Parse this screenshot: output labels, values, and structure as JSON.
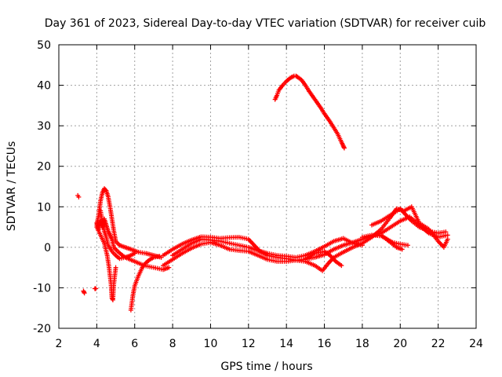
{
  "chart_data": {
    "type": "scatter",
    "title": "Day 361 of 2023, Sidereal Day-to-day VTEC variation (SDTVAR) for receiver cuib",
    "xlabel": "GPS time / hours",
    "ylabel": "SDTVAR / TECUs",
    "xlim": [
      2,
      24
    ],
    "ylim": [
      -20,
      50
    ],
    "xticks": [
      2,
      4,
      6,
      8,
      10,
      12,
      14,
      16,
      18,
      20,
      22,
      24
    ],
    "yticks": [
      -20,
      -10,
      0,
      10,
      20,
      30,
      40,
      50
    ],
    "xtick_labels": [
      "2",
      "4",
      "6",
      "8",
      "10",
      "12",
      "14",
      "16",
      "18",
      "20",
      "22",
      "24"
    ],
    "ytick_labels": [
      "-20",
      "-10",
      "0",
      "10",
      "20",
      "30",
      "40",
      "50"
    ],
    "grid": true,
    "marker": "+",
    "color": "#ff0000",
    "series": [
      {
        "name": "isolated-1",
        "points": [
          [
            3.0,
            12.8
          ],
          [
            3.05,
            12.4
          ]
        ]
      },
      {
        "name": "isolated-2",
        "points": [
          [
            3.3,
            -10.8
          ],
          [
            3.35,
            -11.3
          ]
        ]
      },
      {
        "name": "isolated-3",
        "points": [
          [
            3.9,
            -10.2
          ],
          [
            3.95,
            -10.2
          ]
        ]
      },
      {
        "name": "dawn-arc",
        "points": [
          [
            4.0,
            5.5
          ],
          [
            4.1,
            8.0
          ],
          [
            4.2,
            11.5
          ],
          [
            4.3,
            13.5
          ],
          [
            4.4,
            14.5
          ],
          [
            4.5,
            14.0
          ],
          [
            4.6,
            12.5
          ],
          [
            4.7,
            10.0
          ],
          [
            4.8,
            7.0
          ],
          [
            4.9,
            4.0
          ],
          [
            5.0,
            1.5
          ],
          [
            5.2,
            0.5
          ],
          [
            5.5,
            0.0
          ],
          [
            5.8,
            -0.5
          ],
          [
            6.2,
            -1.2
          ],
          [
            6.6,
            -1.5
          ],
          [
            7.0,
            -2.0
          ],
          [
            7.4,
            -2.5
          ]
        ]
      },
      {
        "name": "dawn-drop",
        "points": [
          [
            4.0,
            5.0
          ],
          [
            4.2,
            3.0
          ],
          [
            4.4,
            1.0
          ],
          [
            4.55,
            -2.0
          ],
          [
            4.65,
            -5.0
          ],
          [
            4.75,
            -9.0
          ],
          [
            4.8,
            -12.5
          ],
          [
            4.85,
            -13.0
          ],
          [
            4.9,
            -9.0
          ],
          [
            5.0,
            -5.0
          ]
        ]
      },
      {
        "name": "dawn-loop",
        "points": [
          [
            4.2,
            9.0
          ],
          [
            4.3,
            6.0
          ],
          [
            4.4,
            4.0
          ],
          [
            4.5,
            2.5
          ],
          [
            4.6,
            0.5
          ],
          [
            4.8,
            -1.0
          ],
          [
            5.0,
            -2.0
          ],
          [
            5.2,
            -2.8
          ],
          [
            5.5,
            -2.5
          ],
          [
            6.0,
            -3.5
          ],
          [
            6.5,
            -4.5
          ],
          [
            7.0,
            -5.0
          ],
          [
            7.5,
            -5.5
          ],
          [
            7.8,
            -5.0
          ]
        ]
      },
      {
        "name": "dawn-dip",
        "points": [
          [
            5.8,
            -15.5
          ],
          [
            5.9,
            -12.0
          ],
          [
            6.0,
            -9.5
          ],
          [
            6.2,
            -7.0
          ],
          [
            6.4,
            -5.0
          ],
          [
            6.6,
            -3.8
          ],
          [
            6.8,
            -3.0
          ],
          [
            7.0,
            -2.5
          ],
          [
            7.3,
            -2.2
          ]
        ]
      },
      {
        "name": "dawn-cluster",
        "points": [
          [
            4.0,
            6.0
          ],
          [
            4.1,
            4.5
          ],
          [
            4.2,
            6.5
          ],
          [
            4.3,
            5.0
          ],
          [
            4.4,
            7.0
          ],
          [
            4.5,
            5.5
          ],
          [
            4.6,
            4.0
          ],
          [
            4.7,
            3.0
          ],
          [
            4.8,
            2.0
          ],
          [
            4.9,
            0.0
          ],
          [
            5.1,
            -1.0
          ],
          [
            5.3,
            -1.8
          ],
          [
            5.5,
            -2.5
          ],
          [
            5.7,
            -2.2
          ],
          [
            6.0,
            -1.5
          ]
        ]
      },
      {
        "name": "midday-upper",
        "points": [
          [
            7.5,
            -2.0
          ],
          [
            8.0,
            -0.5
          ],
          [
            8.5,
            0.8
          ],
          [
            9.0,
            1.8
          ],
          [
            9.5,
            2.6
          ],
          [
            10.0,
            2.5
          ],
          [
            10.5,
            2.2
          ],
          [
            11.0,
            2.4
          ],
          [
            11.5,
            2.5
          ],
          [
            12.0,
            2.0
          ],
          [
            12.3,
            0.5
          ],
          [
            12.6,
            -1.0
          ],
          [
            13.0,
            -2.0
          ],
          [
            13.5,
            -2.5
          ],
          [
            14.0,
            -2.8
          ],
          [
            14.5,
            -3.2
          ],
          [
            15.0,
            -3.0
          ],
          [
            15.5,
            -2.5
          ],
          [
            16.0,
            -1.8
          ],
          [
            16.5,
            -0.5
          ],
          [
            17.0,
            0.5
          ],
          [
            17.5,
            1.2
          ],
          [
            18.0,
            2.0
          ],
          [
            18.5,
            2.8
          ],
          [
            19.0,
            3.5
          ],
          [
            19.5,
            5.0
          ],
          [
            20.0,
            6.5
          ],
          [
            20.5,
            7.5
          ],
          [
            21.0,
            5.5
          ],
          [
            21.5,
            3.5
          ],
          [
            22.0,
            2.5
          ],
          [
            22.5,
            3.0
          ]
        ]
      },
      {
        "name": "midday-lower",
        "points": [
          [
            7.5,
            -4.5
          ],
          [
            8.0,
            -3.0
          ],
          [
            8.5,
            -1.5
          ],
          [
            9.0,
            -0.2
          ],
          [
            9.5,
            0.8
          ],
          [
            10.0,
            1.2
          ],
          [
            10.5,
            0.5
          ],
          [
            11.0,
            -0.5
          ],
          [
            11.5,
            -0.8
          ],
          [
            12.0,
            -1.0
          ],
          [
            12.5,
            -2.0
          ],
          [
            13.0,
            -3.0
          ],
          [
            13.5,
            -3.5
          ],
          [
            14.0,
            -3.5
          ],
          [
            14.5,
            -3.2
          ],
          [
            15.0,
            -3.5
          ],
          [
            15.5,
            -4.5
          ],
          [
            15.9,
            -5.8
          ],
          [
            16.2,
            -4.0
          ],
          [
            16.5,
            -2.5
          ],
          [
            17.0,
            -1.2
          ],
          [
            17.5,
            0.0
          ],
          [
            18.0,
            1.0
          ],
          [
            18.5,
            2.5
          ],
          [
            19.0,
            4.5
          ],
          [
            19.5,
            7.5
          ],
          [
            19.8,
            9.5
          ],
          [
            20.2,
            9.0
          ],
          [
            20.6,
            10.0
          ],
          [
            20.8,
            8.0
          ],
          [
            21.0,
            6.0
          ],
          [
            21.5,
            4.5
          ],
          [
            22.0,
            1.5
          ],
          [
            22.3,
            0.0
          ],
          [
            22.5,
            2.0
          ]
        ]
      },
      {
        "name": "midday-band",
        "points": [
          [
            8.0,
            -2.0
          ],
          [
            8.5,
            -0.5
          ],
          [
            9.0,
            1.0
          ],
          [
            9.5,
            2.0
          ],
          [
            10.0,
            1.8
          ],
          [
            10.5,
            1.5
          ],
          [
            11.0,
            1.0
          ],
          [
            11.5,
            0.5
          ],
          [
            12.0,
            0.0
          ],
          [
            12.5,
            -0.8
          ],
          [
            13.0,
            -1.5
          ],
          [
            13.5,
            -2.0
          ],
          [
            14.0,
            -2.2
          ],
          [
            14.5,
            -2.5
          ],
          [
            15.0,
            -2.0
          ],
          [
            15.5,
            -1.0
          ],
          [
            16.0,
            0.2
          ],
          [
            16.5,
            1.5
          ],
          [
            17.0,
            2.2
          ],
          [
            17.5,
            1.0
          ],
          [
            18.0,
            0.5
          ]
        ]
      },
      {
        "name": "afternoon-branch",
        "points": [
          [
            15.0,
            -2.8
          ],
          [
            15.5,
            -1.5
          ],
          [
            16.0,
            -1.0
          ],
          [
            16.3,
            -2.0
          ],
          [
            16.6,
            -3.5
          ],
          [
            16.9,
            -4.5
          ]
        ]
      },
      {
        "name": "evening-branch",
        "points": [
          [
            18.5,
            5.5
          ],
          [
            19.0,
            6.5
          ],
          [
            19.5,
            8.0
          ],
          [
            20.0,
            9.5
          ],
          [
            20.3,
            8.0
          ],
          [
            20.6,
            6.5
          ],
          [
            21.0,
            5.0
          ],
          [
            21.5,
            4.0
          ],
          [
            22.0,
            3.5
          ],
          [
            22.4,
            3.8
          ]
        ]
      },
      {
        "name": "evening-decay",
        "points": [
          [
            19.0,
            3.0
          ],
          [
            19.4,
            1.5
          ],
          [
            19.8,
            0.0
          ],
          [
            20.1,
            -0.5
          ]
        ]
      },
      {
        "name": "evening-steps",
        "points": [
          [
            18.0,
            2.5
          ],
          [
            18.5,
            3.0
          ],
          [
            19.0,
            2.8
          ],
          [
            19.3,
            2.0
          ],
          [
            19.6,
            1.2
          ],
          [
            20.0,
            0.8
          ],
          [
            20.4,
            0.5
          ]
        ]
      },
      {
        "name": "noon-arc",
        "points": [
          [
            13.4,
            36.5
          ],
          [
            13.5,
            37.5
          ],
          [
            13.6,
            38.8
          ],
          [
            13.8,
            40.0
          ],
          [
            14.0,
            41.0
          ],
          [
            14.2,
            41.8
          ],
          [
            14.4,
            42.3
          ],
          [
            14.5,
            42.3
          ],
          [
            14.6,
            42.0
          ],
          [
            14.8,
            41.3
          ],
          [
            15.0,
            40.0
          ],
          [
            15.2,
            38.5
          ],
          [
            15.5,
            36.5
          ],
          [
            15.8,
            34.5
          ],
          [
            16.0,
            33.0
          ],
          [
            16.3,
            31.0
          ],
          [
            16.5,
            29.5
          ],
          [
            16.7,
            28.0
          ],
          [
            16.9,
            26.0
          ],
          [
            17.0,
            25.0
          ],
          [
            17.05,
            24.5
          ]
        ]
      }
    ]
  }
}
